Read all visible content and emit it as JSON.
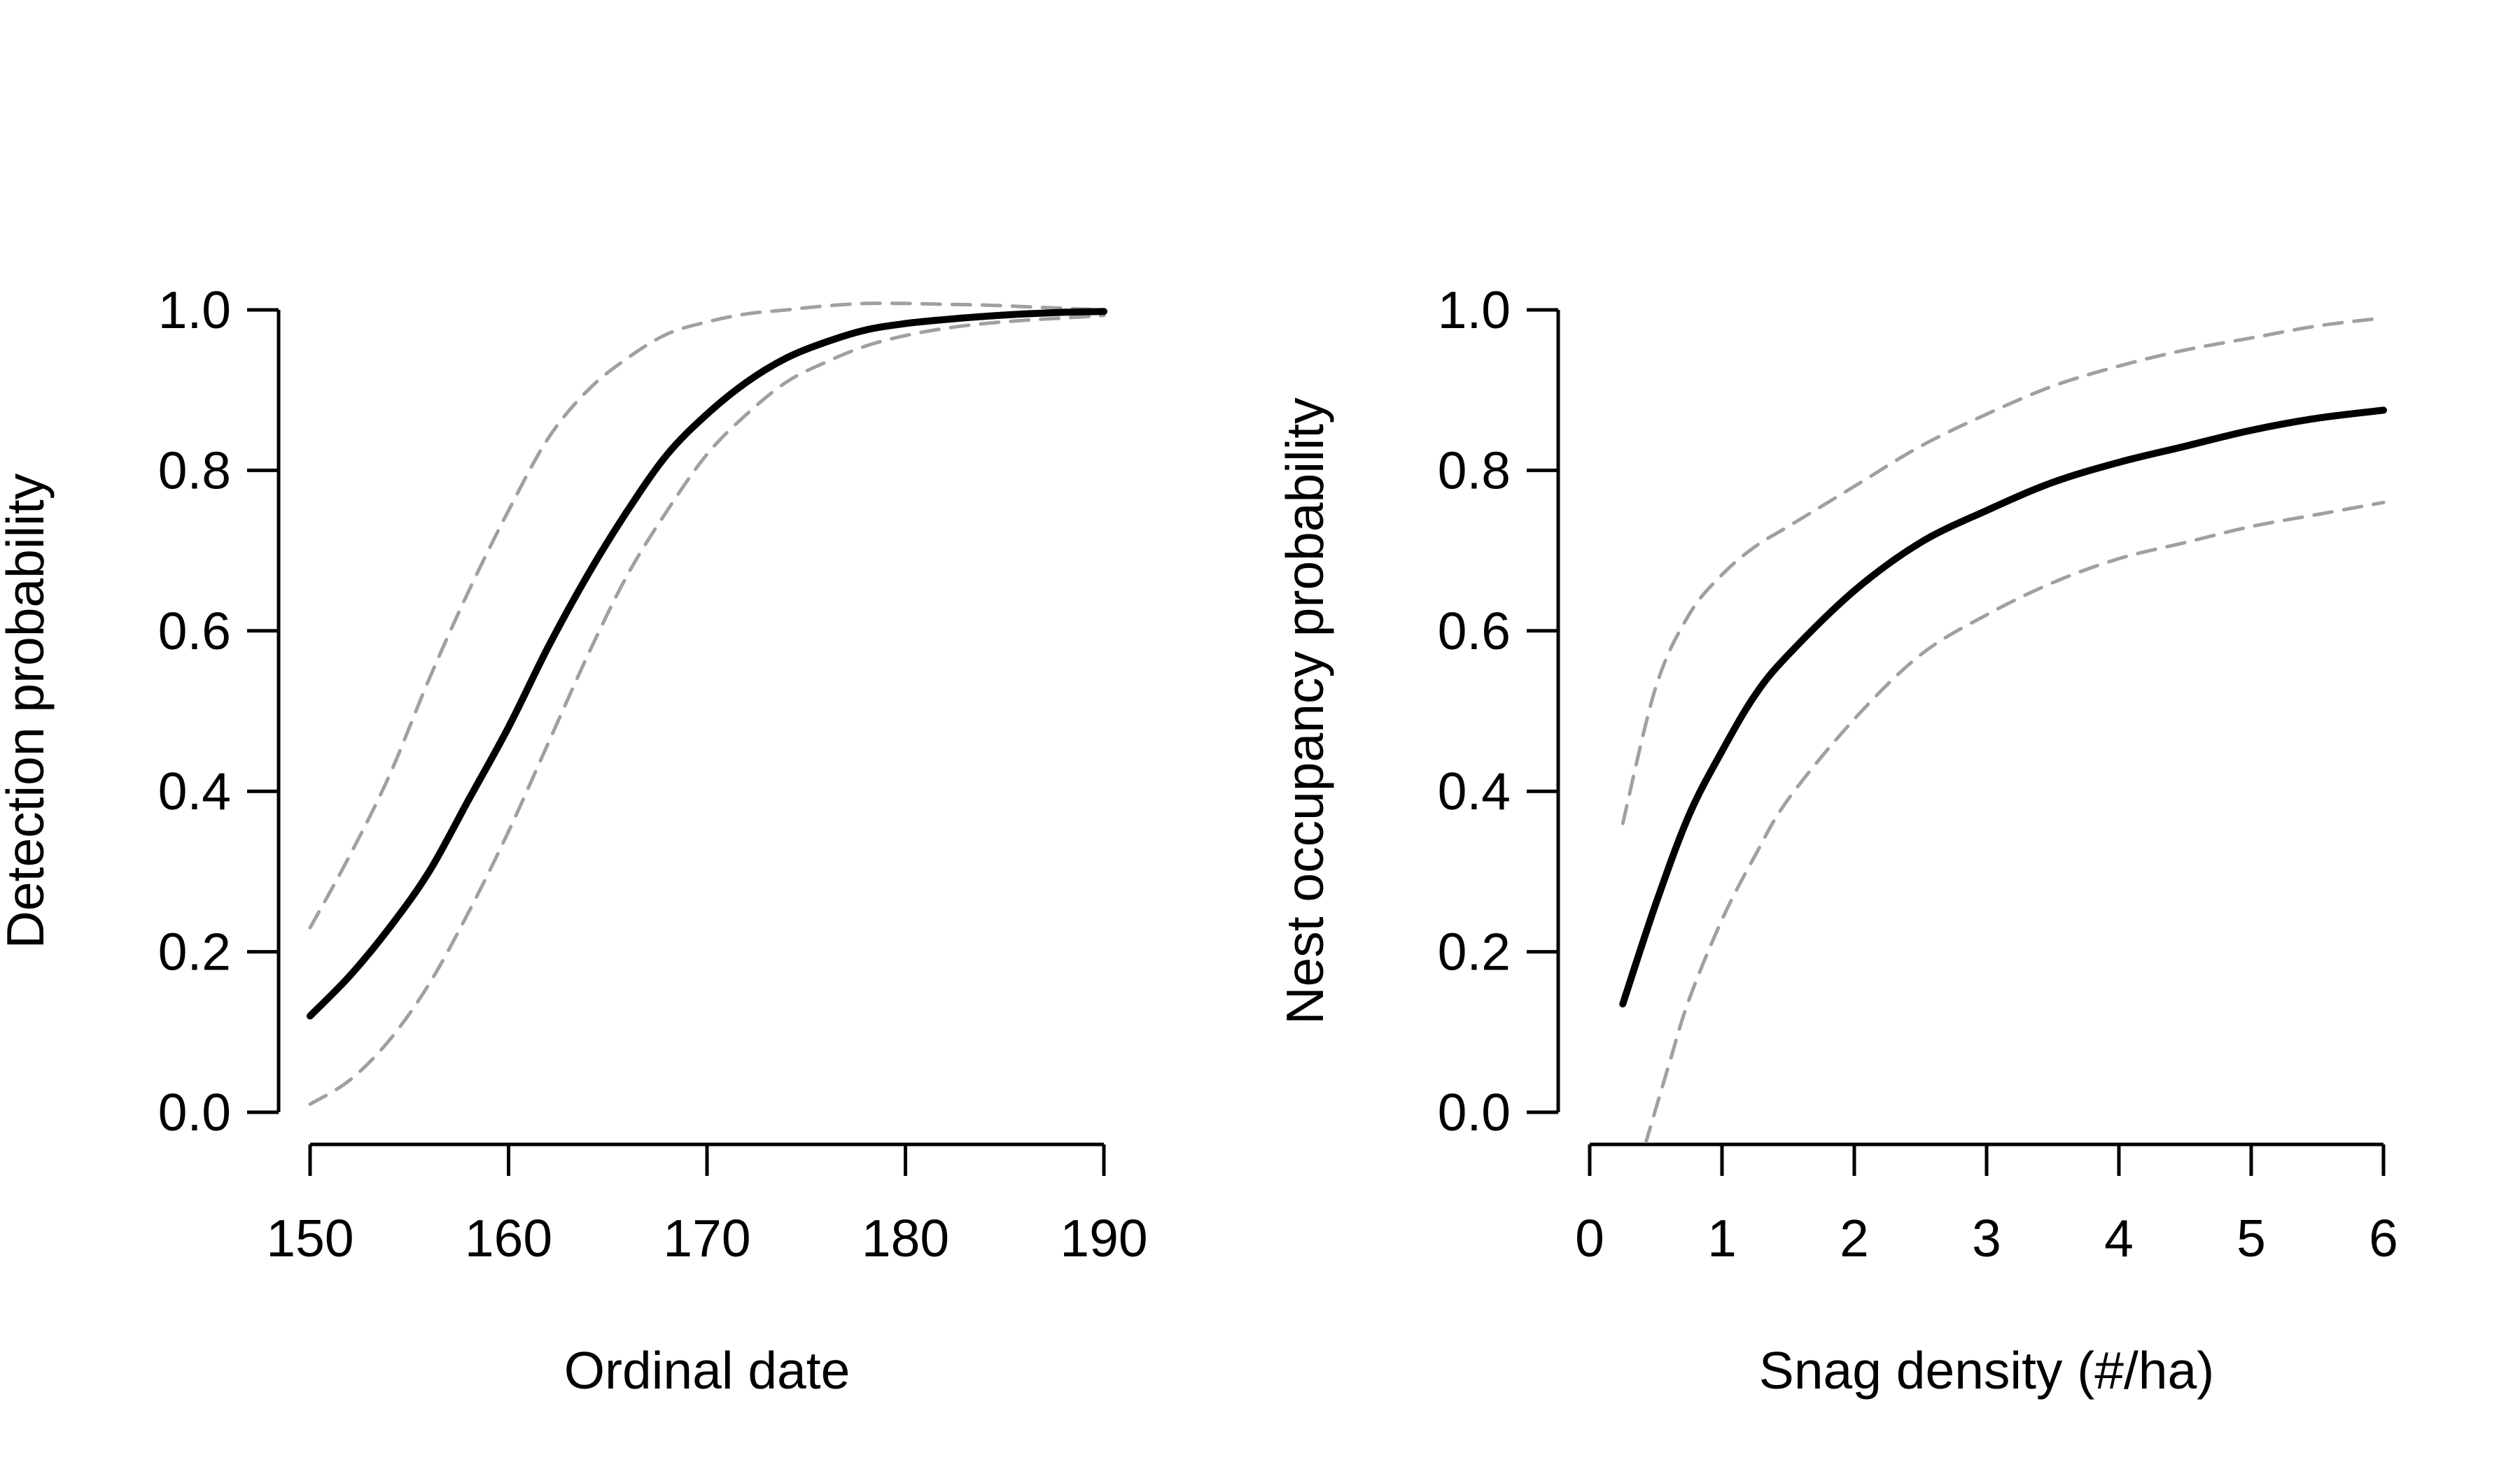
{
  "chart_data": [
    {
      "type": "line",
      "title": "",
      "xlabel": "Ordinal date",
      "ylabel": "Detection probability",
      "xlim": [
        150,
        190
      ],
      "ylim": [
        0,
        1
      ],
      "xticks": [
        150,
        160,
        170,
        180,
        190
      ],
      "xtick_labels": [
        "150",
        "160",
        "170",
        "180",
        "190"
      ],
      "yticks": [
        0,
        0.2,
        0.4,
        0.6,
        0.8,
        1.0
      ],
      "ytick_labels": [
        "0.0",
        "0.2",
        "0.4",
        "0.6",
        "0.8",
        "1.0"
      ],
      "grid": false,
      "legend": "none",
      "x": [
        150,
        152,
        154,
        156,
        158,
        160,
        162,
        164,
        166,
        168,
        170,
        172,
        174,
        176,
        178,
        180,
        182,
        184,
        186,
        188,
        190
      ],
      "series": [
        {
          "role": "estimate",
          "style": "solid",
          "color": "#000000",
          "values": [
            0.12,
            0.17,
            0.23,
            0.3,
            0.39,
            0.48,
            0.58,
            0.67,
            0.75,
            0.82,
            0.87,
            0.91,
            0.94,
            0.96,
            0.975,
            0.983,
            0.988,
            0.992,
            0.995,
            0.997,
            0.998
          ]
        },
        {
          "role": "upper",
          "style": "dashed",
          "color": "#a0a0a0",
          "values": [
            0.23,
            0.32,
            0.42,
            0.54,
            0.65,
            0.75,
            0.84,
            0.9,
            0.94,
            0.97,
            0.985,
            0.995,
            1.0,
            1.005,
            1.008,
            1.008,
            1.007,
            1.006,
            1.004,
            1.002,
            1.0
          ]
        },
        {
          "role": "lower",
          "style": "dashed",
          "color": "#a0a0a0",
          "values": [
            0.01,
            0.04,
            0.09,
            0.16,
            0.25,
            0.35,
            0.46,
            0.57,
            0.67,
            0.75,
            0.82,
            0.87,
            0.91,
            0.935,
            0.955,
            0.968,
            0.977,
            0.983,
            0.987,
            0.99,
            0.993
          ]
        }
      ]
    },
    {
      "type": "line",
      "title": "",
      "xlabel": "Snag density (#/ha)",
      "ylabel": "Nest occupancy probability",
      "xlim": [
        0,
        6
      ],
      "ylim": [
        0,
        1
      ],
      "xticks": [
        0,
        1,
        2,
        3,
        4,
        5,
        6
      ],
      "xtick_labels": [
        "0",
        "1",
        "2",
        "3",
        "4",
        "5",
        "6"
      ],
      "yticks": [
        0,
        0.2,
        0.4,
        0.6,
        0.8,
        1.0
      ],
      "ytick_labels": [
        "0.0",
        "0.2",
        "0.4",
        "0.6",
        "0.8",
        "1.0"
      ],
      "grid": false,
      "legend": "none",
      "series": [
        {
          "role": "estimate",
          "style": "solid",
          "color": "#000000",
          "x": [
            0.25,
            0.5,
            0.75,
            1.0,
            1.25,
            1.5,
            2.0,
            2.5,
            3.0,
            3.5,
            4.0,
            4.5,
            5.0,
            5.5,
            6.0
          ],
          "values": [
            0.135,
            0.26,
            0.37,
            0.45,
            0.52,
            0.57,
            0.65,
            0.71,
            0.75,
            0.785,
            0.81,
            0.83,
            0.85,
            0.865,
            0.875
          ]
        },
        {
          "role": "upper",
          "style": "dashed",
          "color": "#a0a0a0",
          "x": [
            0.25,
            0.5,
            0.75,
            1.0,
            1.25,
            1.5,
            2.0,
            2.5,
            3.0,
            3.5,
            4.0,
            4.5,
            5.0,
            5.5,
            6.0
          ],
          "values": [
            0.36,
            0.53,
            0.62,
            0.67,
            0.705,
            0.73,
            0.78,
            0.83,
            0.87,
            0.905,
            0.93,
            0.95,
            0.965,
            0.98,
            0.99
          ]
        },
        {
          "role": "lower",
          "style": "dashed",
          "color": "#a0a0a0",
          "x": [
            0.42,
            0.6,
            0.75,
            1.0,
            1.25,
            1.5,
            2.0,
            2.5,
            3.0,
            3.5,
            4.0,
            4.5,
            5.0,
            5.5,
            6.0
          ],
          "values": [
            -0.04,
            0.06,
            0.14,
            0.24,
            0.32,
            0.39,
            0.49,
            0.57,
            0.62,
            0.66,
            0.69,
            0.71,
            0.73,
            0.745,
            0.76
          ]
        }
      ]
    }
  ]
}
